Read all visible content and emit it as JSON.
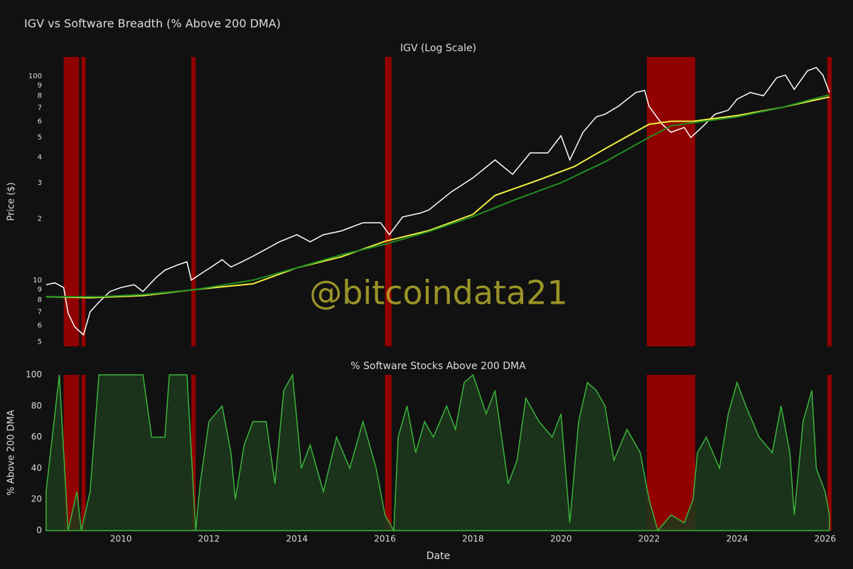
{
  "title": "IGV vs Software Breadth (% Above 200 DMA)",
  "watermark": "@bitcoindata21",
  "highlight_color": "#a00000",
  "highlight_regions": [
    [
      2008.7,
      2009.05
    ],
    [
      2009.1,
      2009.2
    ],
    [
      2011.6,
      2011.7
    ],
    [
      2016.0,
      2016.15
    ],
    [
      2021.95,
      2023.05
    ],
    [
      2026.05,
      2026.15
    ]
  ],
  "chart_data": [
    {
      "type": "line",
      "title": "IGV (Log Scale)",
      "y_label": "Price ($)",
      "log_scale": true,
      "xlim": [
        2008.27,
        2026.15
      ],
      "ylim": [
        4.74,
        124
      ],
      "yticks": [
        5,
        6,
        7,
        8,
        9,
        10,
        {
          "value": 20,
          "label": "2"
        },
        {
          "value": 30,
          "label": "3"
        },
        {
          "value": 40,
          "label": "4"
        },
        {
          "value": 50,
          "label": "5"
        },
        {
          "value": 60,
          "label": "6"
        },
        {
          "value": 70,
          "label": "7"
        },
        {
          "value": 80,
          "label": "8"
        },
        {
          "value": 90,
          "label": "9"
        },
        100
      ],
      "series": [
        {
          "color": "#ffffff",
          "x": [
            2008.3,
            2008.5,
            2008.7,
            2008.8,
            2008.95,
            2009.15,
            2009.3,
            2009.5,
            2009.75,
            2010.0,
            2010.3,
            2010.5,
            2010.8,
            2011.0,
            2011.3,
            2011.5,
            2011.6,
            2011.8,
            2012.0,
            2012.3,
            2012.5,
            2012.75,
            2013.0,
            2013.3,
            2013.6,
            2014.0,
            2014.3,
            2014.6,
            2015.0,
            2015.5,
            2015.9,
            2016.1,
            2016.4,
            2016.8,
            2017.0,
            2017.5,
            2018.0,
            2018.5,
            2018.9,
            2019.3,
            2019.7,
            2020.0,
            2020.2,
            2020.5,
            2020.8,
            2021.0,
            2021.3,
            2021.7,
            2021.9,
            2022.0,
            2022.3,
            2022.5,
            2022.8,
            2022.95,
            2023.2,
            2023.5,
            2023.8,
            2024.0,
            2024.3,
            2024.6,
            2024.9,
            2025.1,
            2025.3,
            2025.6,
            2025.8,
            2025.95,
            2026.1
          ],
          "values": [
            9.5,
            9.7,
            9.2,
            6.9,
            5.9,
            5.4,
            7,
            7.8,
            8.8,
            9.2,
            9.5,
            8.8,
            10.3,
            11.2,
            11.9,
            12.3,
            10,
            10.7,
            11.4,
            12.6,
            11.6,
            12.3,
            13.1,
            14.2,
            15.4,
            16.7,
            15.4,
            16.7,
            17.4,
            19.1,
            19.1,
            16.7,
            20.4,
            21.3,
            22.1,
            27,
            31.7,
            38.8,
            33,
            42,
            42,
            51,
            38.8,
            53,
            63,
            65,
            71,
            83,
            85,
            71,
            58,
            53,
            56,
            50,
            56,
            65,
            68,
            77,
            83,
            80,
            98,
            101,
            86,
            106,
            110,
            101,
            83
          ]
        },
        {
          "color": "#f0f040",
          "x": [
            2008.3,
            2009.3,
            2010.5,
            2011.7,
            2013.0,
            2014.0,
            2015.0,
            2016.0,
            2017.0,
            2018.0,
            2018.5,
            2019.5,
            2020.3,
            2021.0,
            2022.0,
            2022.5,
            2023.0,
            2024.0,
            2025.0,
            2026.1
          ],
          "values": [
            8.3,
            8.2,
            8.4,
            9.0,
            9.6,
            11.5,
            13,
            15.5,
            17.5,
            21,
            26,
            31,
            36,
            44,
            58,
            60,
            60,
            64,
            70,
            79
          ]
        },
        {
          "color": "#1f8f1f",
          "x": [
            2008.3,
            2009.5,
            2010.5,
            2011.7,
            2013.0,
            2014.0,
            2015.0,
            2016.0,
            2017.0,
            2018.0,
            2019.0,
            2020.0,
            2021.0,
            2022.0,
            2022.5,
            2023.0,
            2024.0,
            2025.0,
            2026.1
          ],
          "values": [
            8.3,
            8.3,
            8.5,
            9.0,
            10.0,
            11.5,
            13.3,
            15.0,
            17.3,
            20.5,
            25,
            30,
            38,
            50,
            57,
            59,
            63,
            70,
            81
          ]
        }
      ]
    },
    {
      "type": "area",
      "title": "% Software Stocks Above 200 DMA",
      "y_label": "% Above 200 DMA",
      "x_label": "Date",
      "xlim": [
        2008.27,
        2026.15
      ],
      "ylim": [
        0,
        100
      ],
      "yticks": [
        0,
        20,
        40,
        60,
        80,
        100
      ],
      "xticks": [
        2010,
        2012,
        2014,
        2016,
        2018,
        2020,
        2022,
        2024,
        2026
      ],
      "series": [
        {
          "color": "#3cb33c",
          "fill": "#1c3a1c",
          "x": [
            2008.3,
            2008.4,
            2008.6,
            2008.7,
            2008.8,
            2009.0,
            2009.1,
            2009.3,
            2009.5,
            2010.0,
            2010.5,
            2010.7,
            2011.0,
            2011.1,
            2011.5,
            2011.6,
            2011.7,
            2011.8,
            2012.0,
            2012.3,
            2012.5,
            2012.6,
            2012.8,
            2013.0,
            2013.3,
            2013.5,
            2013.7,
            2013.9,
            2014.1,
            2014.3,
            2014.6,
            2014.9,
            2015.2,
            2015.5,
            2015.8,
            2016.0,
            2016.2,
            2016.3,
            2016.5,
            2016.7,
            2016.9,
            2017.1,
            2017.4,
            2017.6,
            2017.8,
            2018.0,
            2018.3,
            2018.5,
            2018.8,
            2019.0,
            2019.2,
            2019.5,
            2019.8,
            2020.0,
            2020.2,
            2020.4,
            2020.6,
            2020.8,
            2021.0,
            2021.2,
            2021.5,
            2021.8,
            2022.0,
            2022.2,
            2022.5,
            2022.8,
            2023.0,
            2023.1,
            2023.3,
            2023.6,
            2023.8,
            2024.0,
            2024.2,
            2024.5,
            2024.8,
            2025.0,
            2025.2,
            2025.3,
            2025.5,
            2025.7,
            2025.8,
            2026.0,
            2026.1
          ],
          "values": [
            25,
            50,
            100,
            50,
            0,
            25,
            0,
            25,
            100,
            100,
            100,
            60,
            60,
            100,
            100,
            50,
            0,
            30,
            70,
            80,
            50,
            20,
            55,
            70,
            70,
            30,
            90,
            100,
            40,
            55,
            25,
            60,
            40,
            70,
            40,
            10,
            0,
            60,
            80,
            50,
            70,
            60,
            80,
            65,
            95,
            100,
            75,
            90,
            30,
            45,
            85,
            70,
            60,
            75,
            5,
            70,
            95,
            90,
            80,
            45,
            65,
            50,
            20,
            0,
            10,
            5,
            20,
            50,
            60,
            40,
            75,
            95,
            80,
            60,
            50,
            80,
            50,
            10,
            70,
            90,
            40,
            25,
            10
          ]
        }
      ]
    }
  ]
}
